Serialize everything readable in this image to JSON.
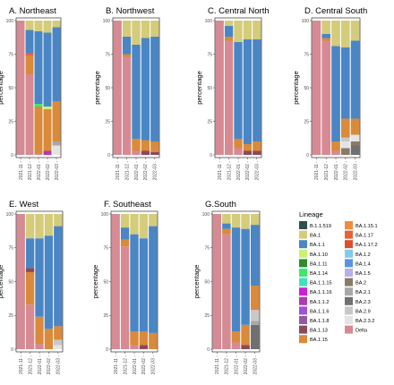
{
  "chart_data": {
    "type": "bar",
    "stacked": true,
    "ylabel": "percentage",
    "yticks": [
      0,
      25,
      50,
      75,
      100
    ],
    "ylim": [
      0,
      100
    ],
    "legend": {
      "title": "Lineage",
      "placement": "right",
      "entries": [
        {
          "name": "B.1.1.519",
          "color": "#2f4f4f"
        },
        {
          "name": "BA.1",
          "color": "#d4cc7a"
        },
        {
          "name": "BA.1.1",
          "color": "#4a86c4"
        },
        {
          "name": "BA.1.10",
          "color": "#ccf26a"
        },
        {
          "name": "BA.1.11",
          "color": "#2e8b2e"
        },
        {
          "name": "BA.1.14",
          "color": "#3ce86e"
        },
        {
          "name": "BA.1.15.1",
          "color": "#f08c3c"
        },
        {
          "name": "BA.1.17",
          "color": "#e6623a"
        },
        {
          "name": "BA.1.17.2",
          "color": "#d8502c"
        },
        {
          "name": "BA.1.2",
          "color": "#7ecce8"
        },
        {
          "name": "BA.1.4",
          "color": "#5a92e6"
        },
        {
          "name": "BA.1.5",
          "color": "#b8b0ea"
        },
        {
          "name": "BA.1.1.15",
          "color": "#40e0c0"
        },
        {
          "name": "BA.1.1.16",
          "color": "#d21ed2"
        },
        {
          "name": "BA.1.1.2",
          "color": "#b03ab0"
        },
        {
          "name": "BA.1.1.6",
          "color": "#a050d8"
        },
        {
          "name": "BA.1.1.8",
          "color": "#8e5aa8"
        },
        {
          "name": "BA.1.13",
          "color": "#8a4a5a"
        },
        {
          "name": "BA.1.15",
          "color": "#d98a3a"
        },
        {
          "name": "BA.2",
          "color": "#8a7a66"
        },
        {
          "name": "BA.2.1",
          "color": "#a8a8a8"
        },
        {
          "name": "BA.2.3",
          "color": "#707070"
        },
        {
          "name": "BA.2.9",
          "color": "#c8c8c8"
        },
        {
          "name": "BA.2.3.2",
          "color": "#e4e4e4"
        },
        {
          "name": "Delta",
          "color": "#d68a94"
        }
      ]
    },
    "panels": [
      {
        "title": "A. Northeast",
        "categories": [
          "2021-11",
          "2021-12",
          "2022-01",
          "2022-02",
          "2022-03"
        ],
        "bars": [
          [
            {
              "l": "Delta",
              "v": 100
            }
          ],
          [
            {
              "l": "Delta",
              "v": 60
            },
            {
              "l": "BA.1.15",
              "v": 14
            },
            {
              "l": "BA.1.17",
              "v": 2
            },
            {
              "l": "BA.1.1",
              "v": 17
            },
            {
              "l": "BA.1",
              "v": 7
            }
          ],
          [
            {
              "l": "Delta",
              "v": 1
            },
            {
              "l": "BA.1.15",
              "v": 35
            },
            {
              "l": "BA.1.14",
              "v": 2
            },
            {
              "l": "BA.1.1",
              "v": 54
            },
            {
              "l": "BA.1",
              "v": 8
            }
          ],
          [
            {
              "l": "BA.1.1.2",
              "v": 3
            },
            {
              "l": "BA.1.15",
              "v": 31
            },
            {
              "l": "BA.1.10",
              "v": 2
            },
            {
              "l": "BA.1.1",
              "v": 55
            },
            {
              "l": "BA.1",
              "v": 9
            }
          ],
          [
            {
              "l": "BA.2.3.2",
              "v": 7
            },
            {
              "l": "BA.2.1",
              "v": 3
            },
            {
              "l": "BA.1.15",
              "v": 30
            },
            {
              "l": "BA.1.1",
              "v": 55
            },
            {
              "l": "BA.1",
              "v": 5
            }
          ]
        ]
      },
      {
        "title": "B. Northwest",
        "categories": [
          "2021-11",
          "2021-12",
          "2022-01",
          "2022-02",
          "2022-03"
        ],
        "bars": [
          [
            {
              "l": "Delta",
              "v": 100
            }
          ],
          [
            {
              "l": "Delta",
              "v": 73
            },
            {
              "l": "BA.1.15",
              "v": 2
            },
            {
              "l": "BA.1.1",
              "v": 13
            },
            {
              "l": "BA.1",
              "v": 12
            }
          ],
          [
            {
              "l": "Delta",
              "v": 3
            },
            {
              "l": "BA.1.15",
              "v": 9
            },
            {
              "l": "BA.1.1",
              "v": 70
            },
            {
              "l": "BA.1",
              "v": 18
            }
          ],
          [
            {
              "l": "BA.1.13",
              "v": 3
            },
            {
              "l": "BA.1.15",
              "v": 8
            },
            {
              "l": "BA.1.1",
              "v": 76
            },
            {
              "l": "BA.1",
              "v": 13
            }
          ],
          [
            {
              "l": "BA.1.13",
              "v": 2
            },
            {
              "l": "BA.1.15",
              "v": 8
            },
            {
              "l": "BA.1.1",
              "v": 78
            },
            {
              "l": "BA.1",
              "v": 12
            }
          ]
        ]
      },
      {
        "title": "C. Central North",
        "categories": [
          "2021-11",
          "2021-12",
          "2022-01",
          "2022-02",
          "2022-03"
        ],
        "bars": [
          [
            {
              "l": "Delta",
              "v": 100
            }
          ],
          [
            {
              "l": "Delta",
              "v": 85
            },
            {
              "l": "BA.1.15",
              "v": 3
            },
            {
              "l": "BA.1.1",
              "v": 8
            },
            {
              "l": "BA.1",
              "v": 4
            }
          ],
          [
            {
              "l": "Delta",
              "v": 5
            },
            {
              "l": "BA.1.15",
              "v": 7
            },
            {
              "l": "BA.1.1",
              "v": 72
            },
            {
              "l": "BA.1",
              "v": 16
            }
          ],
          [
            {
              "l": "BA.1.13",
              "v": 3
            },
            {
              "l": "BA.1.15",
              "v": 5
            },
            {
              "l": "BA.1.1",
              "v": 78
            },
            {
              "l": "BA.1",
              "v": 14
            }
          ],
          [
            {
              "l": "BA.1.13",
              "v": 3
            },
            {
              "l": "BA.1.15",
              "v": 7
            },
            {
              "l": "BA.1.1",
              "v": 76
            },
            {
              "l": "BA.1",
              "v": 14
            }
          ]
        ]
      },
      {
        "title": "D. Central South",
        "categories": [
          "2021-11",
          "2021-12",
          "2022-01",
          "2022-02",
          "2022-03"
        ],
        "bars": [
          [
            {
              "l": "Delta",
              "v": 100
            }
          ],
          [
            {
              "l": "Delta",
              "v": 85
            },
            {
              "l": "BA.1.15",
              "v": 2
            },
            {
              "l": "BA.1.1",
              "v": 3
            },
            {
              "l": "BA.1",
              "v": 10
            }
          ],
          [
            {
              "l": "Delta",
              "v": 3
            },
            {
              "l": "BA.1.15",
              "v": 7
            },
            {
              "l": "BA.1.1",
              "v": 71
            },
            {
              "l": "BA.1",
              "v": 19
            }
          ],
          [
            {
              "l": "BA.2",
              "v": 5
            },
            {
              "l": "BA.2.3.2",
              "v": 5
            },
            {
              "l": "BA.2.9",
              "v": 3
            },
            {
              "l": "BA.1.15",
              "v": 14
            },
            {
              "l": "BA.1.1",
              "v": 53
            },
            {
              "l": "BA.1",
              "v": 20
            }
          ],
          [
            {
              "l": "BA.2.3",
              "v": 7
            },
            {
              "l": "BA.2",
              "v": 3
            },
            {
              "l": "BA.2.3.2",
              "v": 5
            },
            {
              "l": "BA.1.15",
              "v": 12
            },
            {
              "l": "BA.1.1",
              "v": 58
            },
            {
              "l": "BA.1",
              "v": 15
            }
          ]
        ]
      },
      {
        "title": "E. West",
        "categories": [
          "2021-11",
          "2021-12",
          "2022-01",
          "2022-02",
          "2022-03"
        ],
        "bars": [
          [
            {
              "l": "Delta",
              "v": 100
            }
          ],
          [
            {
              "l": "Delta",
              "v": 33
            },
            {
              "l": "BA.1.15",
              "v": 24
            },
            {
              "l": "BA.1.13",
              "v": 3
            },
            {
              "l": "BA.1.1",
              "v": 22
            },
            {
              "l": "BA.1",
              "v": 18
            }
          ],
          [
            {
              "l": "Delta",
              "v": 4
            },
            {
              "l": "BA.1.15",
              "v": 20
            },
            {
              "l": "BA.1.1",
              "v": 58
            },
            {
              "l": "BA.1",
              "v": 18
            }
          ],
          [
            {
              "l": "BA.1.15",
              "v": 15
            },
            {
              "l": "BA.1.1",
              "v": 69
            },
            {
              "l": "BA.1",
              "v": 16
            }
          ],
          [
            {
              "l": "BA.2.3.2",
              "v": 3
            },
            {
              "l": "BA.2.9",
              "v": 4
            },
            {
              "l": "BA.1.15",
              "v": 10
            },
            {
              "l": "BA.1.1",
              "v": 74
            },
            {
              "l": "BA.1",
              "v": 9
            }
          ]
        ]
      },
      {
        "title": "F. Southeast",
        "categories": [
          "2021-11",
          "2021-12",
          "2022-01",
          "2022-02",
          "2022-03"
        ],
        "bars": [
          [
            {
              "l": "Delta",
              "v": 100
            }
          ],
          [
            {
              "l": "Delta",
              "v": 76
            },
            {
              "l": "BA.1.15",
              "v": 5
            },
            {
              "l": "BA.1.1",
              "v": 9
            },
            {
              "l": "BA.1",
              "v": 10
            }
          ],
          [
            {
              "l": "Delta",
              "v": 3
            },
            {
              "l": "BA.1.15",
              "v": 10
            },
            {
              "l": "BA.1.1",
              "v": 72
            },
            {
              "l": "BA.1",
              "v": 15
            }
          ],
          [
            {
              "l": "BA.1.13",
              "v": 3
            },
            {
              "l": "BA.1.15",
              "v": 10
            },
            {
              "l": "BA.1.1",
              "v": 69
            },
            {
              "l": "BA.1",
              "v": 18
            }
          ],
          [
            {
              "l": "BA.1.15",
              "v": 12
            },
            {
              "l": "BA.1.1",
              "v": 79
            },
            {
              "l": "BA.1",
              "v": 9
            }
          ]
        ]
      },
      {
        "title": "G.South",
        "categories": [
          "2021-11",
          "2021-12",
          "2022-01",
          "2022-02",
          "2022-03"
        ],
        "bars": [
          [
            {
              "l": "Delta",
              "v": 100
            }
          ],
          [
            {
              "l": "Delta",
              "v": 85
            },
            {
              "l": "BA.1.15",
              "v": 4
            },
            {
              "l": "BA.1.1",
              "v": 4
            },
            {
              "l": "BA.1",
              "v": 7
            }
          ],
          [
            {
              "l": "Delta",
              "v": 5
            },
            {
              "l": "BA.1.15",
              "v": 8
            },
            {
              "l": "BA.1.1",
              "v": 77
            },
            {
              "l": "BA.1",
              "v": 10
            }
          ],
          [
            {
              "l": "BA.1.13",
              "v": 3
            },
            {
              "l": "BA.1.15",
              "v": 15
            },
            {
              "l": "BA.1.1",
              "v": 71
            },
            {
              "l": "BA.1",
              "v": 11
            }
          ],
          [
            {
              "l": "BA.2.3",
              "v": 18
            },
            {
              "l": "BA.2.1",
              "v": 3
            },
            {
              "l": "BA.2.9",
              "v": 8
            },
            {
              "l": "BA.1.15",
              "v": 18
            },
            {
              "l": "BA.1.1",
              "v": 45
            },
            {
              "l": "BA.1",
              "v": 8
            }
          ]
        ]
      }
    ]
  }
}
